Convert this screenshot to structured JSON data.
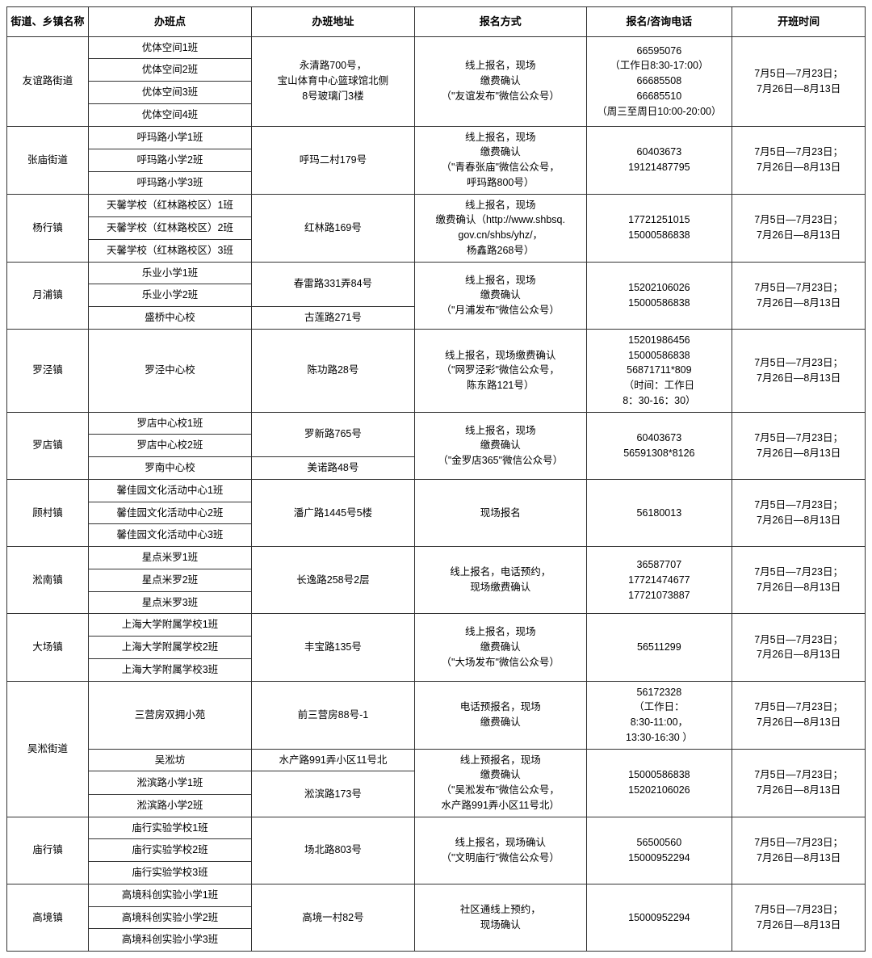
{
  "headers": [
    "街道、乡镇名称",
    "办班点",
    "办班地址",
    "报名方式",
    "报名/咨询电话",
    "开班时间"
  ],
  "districts": [
    {
      "name": "友谊路街道",
      "time": "7月5日—7月23日；\n7月26日—8月13日",
      "groups": [
        {
          "classes": [
            "优体空间1班",
            "优体空间2班",
            "优体空间3班",
            "优体空间4班"
          ],
          "address": "永清路700号，\n宝山体育中心篮球馆北侧\n8号玻璃门3楼",
          "signup": "线上报名，现场\n缴费确认\n（\"友谊发布\"微信公众号）",
          "phone": "66595076\n（工作日8:30-17:00）\n66685508\n66685510\n（周三至周日10:00-20:00）"
        }
      ]
    },
    {
      "name": "张庙街道",
      "time": "7月5日—7月23日；\n7月26日—8月13日",
      "groups": [
        {
          "classes": [
            "呼玛路小学1班",
            "呼玛路小学2班",
            "呼玛路小学3班"
          ],
          "address": "呼玛二村179号",
          "signup": "线上报名，现场\n缴费确认\n（\"青春张庙\"微信公众号，\n呼玛路800号）",
          "phone": "60403673\n19121487795"
        }
      ]
    },
    {
      "name": "杨行镇",
      "time": "7月5日—7月23日；\n7月26日—8月13日",
      "groups": [
        {
          "classes": [
            "天馨学校（红林路校区）1班",
            "天馨学校（红林路校区）2班",
            "天馨学校（红林路校区）3班"
          ],
          "address": "红林路169号",
          "signup": "线上报名，现场\n缴费确认（http://www.shbsq.\ngov.cn/shbs/yhz/，\n杨鑫路268号）",
          "phone": "17721251015\n15000586838"
        }
      ]
    },
    {
      "name": "月浦镇",
      "time": "7月5日—7月23日；\n7月26日—8月13日",
      "signup": "线上报名，现场\n缴费确认\n（\"月浦发布\"微信公众号）",
      "phone": "15202106026\n15000586838",
      "groups": [
        {
          "classes": [
            "乐业小学1班",
            "乐业小学2班"
          ],
          "address": "春雷路331弄84号"
        },
        {
          "classes": [
            "盛桥中心校"
          ],
          "address": "古莲路271号"
        }
      ]
    },
    {
      "name": "罗泾镇",
      "time": "7月5日—7月23日；\n7月26日—8月13日",
      "groups": [
        {
          "classes": [
            "罗泾中心校"
          ],
          "address": "陈功路28号",
          "signup": "线上报名，现场缴费确认\n（\"网罗泾彩\"微信公众号，\n陈东路121号）",
          "phone": "15201986456\n15000586838\n56871711*809\n（时间：工作日\n8：30-16：30）"
        }
      ]
    },
    {
      "name": "罗店镇",
      "time": "7月5日—7月23日；\n7月26日—8月13日",
      "signup": "线上报名，现场\n缴费确认\n（\"金罗店365\"微信公众号）",
      "phone": "60403673\n56591308*8126",
      "groups": [
        {
          "classes": [
            "罗店中心校1班",
            "罗店中心校2班"
          ],
          "address": "罗新路765号"
        },
        {
          "classes": [
            "罗南中心校"
          ],
          "address": "美诺路48号"
        }
      ]
    },
    {
      "name": "顾村镇",
      "time": "7月5日—7月23日；\n7月26日—8月13日",
      "groups": [
        {
          "classes": [
            "馨佳园文化活动中心1班",
            "馨佳园文化活动中心2班",
            "馨佳园文化活动中心3班"
          ],
          "address": "潘广路1445号5楼",
          "signup": "现场报名",
          "phone": "56180013"
        }
      ]
    },
    {
      "name": "淞南镇",
      "time": "7月5日—7月23日；\n7月26日—8月13日",
      "groups": [
        {
          "classes": [
            "星点米罗1班",
            "星点米罗2班",
            "星点米罗3班"
          ],
          "address": "长逸路258号2层",
          "signup": "线上报名，电话预约，\n现场缴费确认",
          "phone": "36587707\n17721474677\n17721073887"
        }
      ]
    },
    {
      "name": "大场镇",
      "time": "7月5日—7月23日；\n7月26日—8月13日",
      "groups": [
        {
          "classes": [
            "上海大学附属学校1班",
            "上海大学附属学校2班",
            "上海大学附属学校3班"
          ],
          "address": "丰宝路135号",
          "signup": "线上报名，现场\n缴费确认\n（\"大场发布\"微信公众号）",
          "phone": "56511299"
        }
      ]
    },
    {
      "name": "吴淞街道",
      "time": "7月5日—7月23日；\n7月26日—8月13日",
      "subgroups": [
        {
          "classes": [
            "三营房双拥小苑"
          ],
          "address": "前三营房88号-1",
          "signup": "电话预报名，现场\n缴费确认",
          "phone": "56172328\n（工作日：\n8:30-11:00，\n13:30-16:30 ）",
          "time": "7月5日—7月23日；\n7月26日—8月13日"
        },
        {
          "classes": [
            "吴淞坊"
          ],
          "address": "水产路991弄小区11号北",
          "signup": "线上预报名，现场\n缴费确认\n（\"吴淞发布\"微信公众号，\n水产路991弄小区11号北）",
          "phone": "15000586838\n15202106026",
          "time": "7月5日—7月23日；\n7月26日—8月13日",
          "nextAddr": "淞滨路173号",
          "nextClasses": [
            "淞滨路小学1班",
            "淞滨路小学2班"
          ]
        }
      ]
    },
    {
      "name": "庙行镇",
      "time": "7月5日—7月23日；\n7月26日—8月13日",
      "groups": [
        {
          "classes": [
            "庙行实验学校1班",
            "庙行实验学校2班",
            "庙行实验学校3班"
          ],
          "address": "场北路803号",
          "signup": "线上报名，现场确认\n（\"文明庙行\"微信公众号）",
          "phone": "56500560\n15000952294"
        }
      ]
    },
    {
      "name": "高境镇",
      "time": "7月5日—7月23日；\n7月26日—8月13日",
      "groups": [
        {
          "classes": [
            "高境科创实验小学1班",
            "高境科创实验小学2班",
            "高境科创实验小学3班"
          ],
          "address": "高境一村82号",
          "signup": "社区通线上预约，\n现场确认",
          "phone": "15000952294"
        }
      ]
    }
  ]
}
